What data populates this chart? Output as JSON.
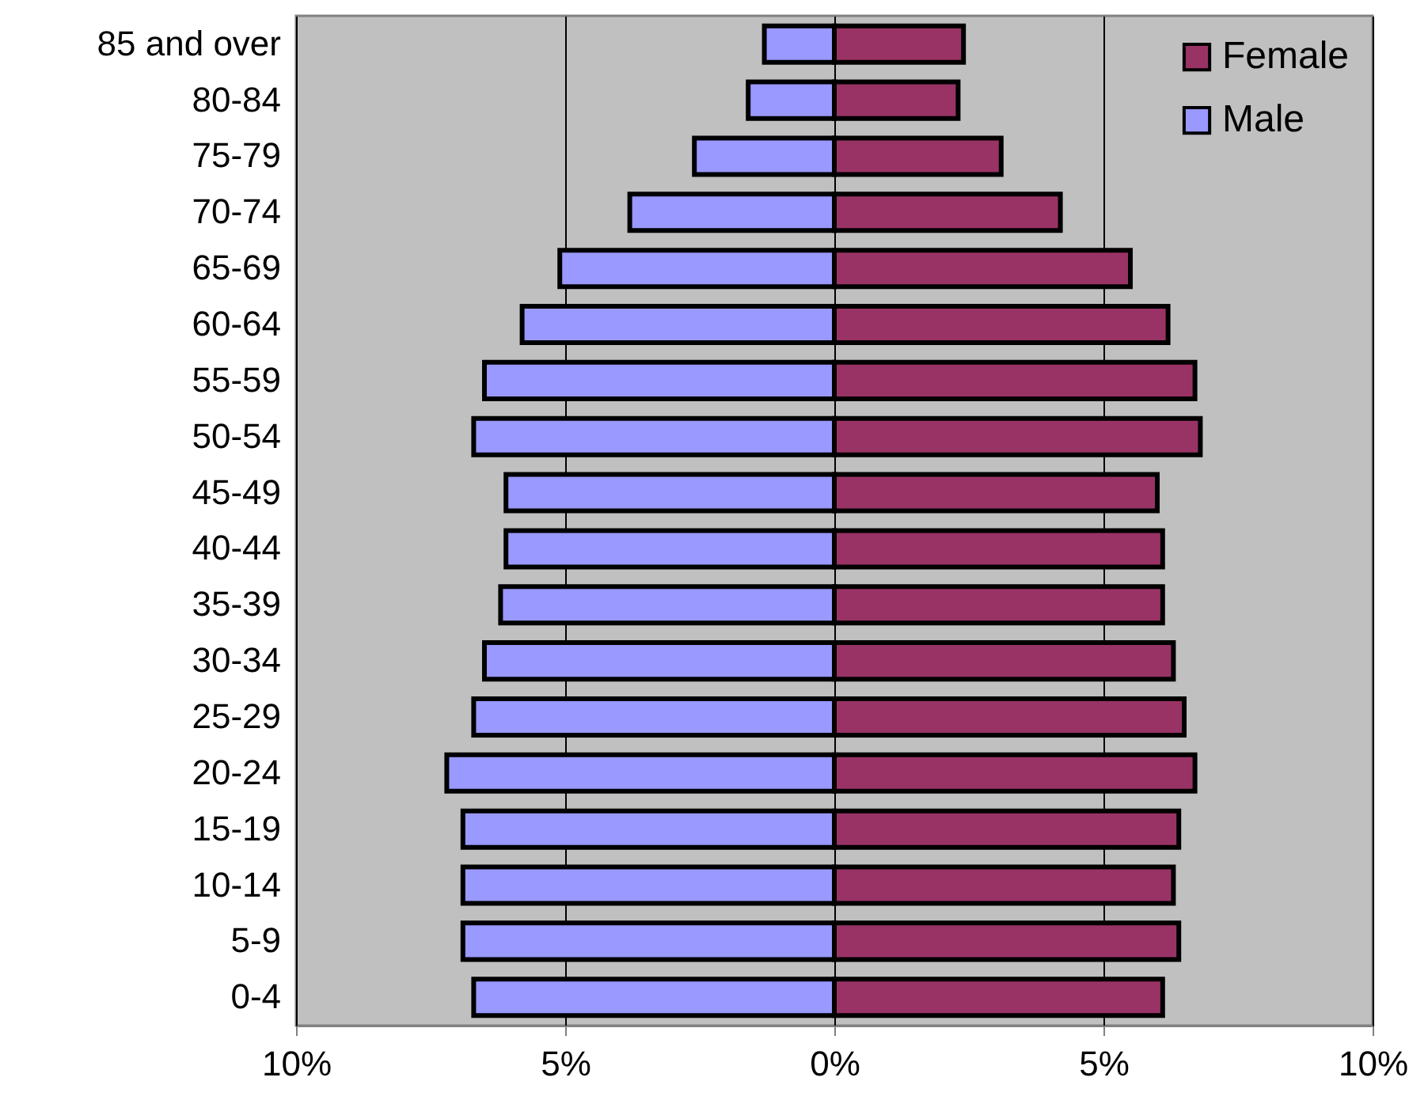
{
  "chart_data": {
    "type": "bar",
    "orientation": "horizontal",
    "stacked": true,
    "categories": [
      "85 and over",
      "80-84",
      "75-79",
      "70-74",
      "65-69",
      "60-64",
      "55-59",
      "50-54",
      "45-49",
      "40-44",
      "35-39",
      "30-34",
      "25-29",
      "20-24",
      "15-19",
      "10-14",
      "5-9",
      "0-4"
    ],
    "series": [
      {
        "name": "Female",
        "color": "#993366",
        "values": [
          2.4,
          2.3,
          3.1,
          4.2,
          5.5,
          6.2,
          6.7,
          6.8,
          6.0,
          6.1,
          6.1,
          6.3,
          6.5,
          6.7,
          6.4,
          6.3,
          6.4,
          6.1
        ]
      },
      {
        "name": "Male",
        "color": "#9999ff",
        "values": [
          -1.3,
          -1.6,
          -2.6,
          -3.8,
          -5.1,
          -5.8,
          -6.5,
          -6.7,
          -6.1,
          -6.1,
          -6.2,
          -6.5,
          -6.7,
          -7.2,
          -6.9,
          -6.9,
          -6.9,
          -6.7
        ]
      }
    ],
    "xlim": [
      -10,
      10
    ],
    "xticks": [
      {
        "value": -10,
        "label": "10%"
      },
      {
        "value": -5,
        "label": "5%"
      },
      {
        "value": 0,
        "label": "0%"
      },
      {
        "value": 5,
        "label": "5%"
      },
      {
        "value": 10,
        "label": "10%"
      }
    ],
    "grid": "x",
    "legend": "top right"
  }
}
